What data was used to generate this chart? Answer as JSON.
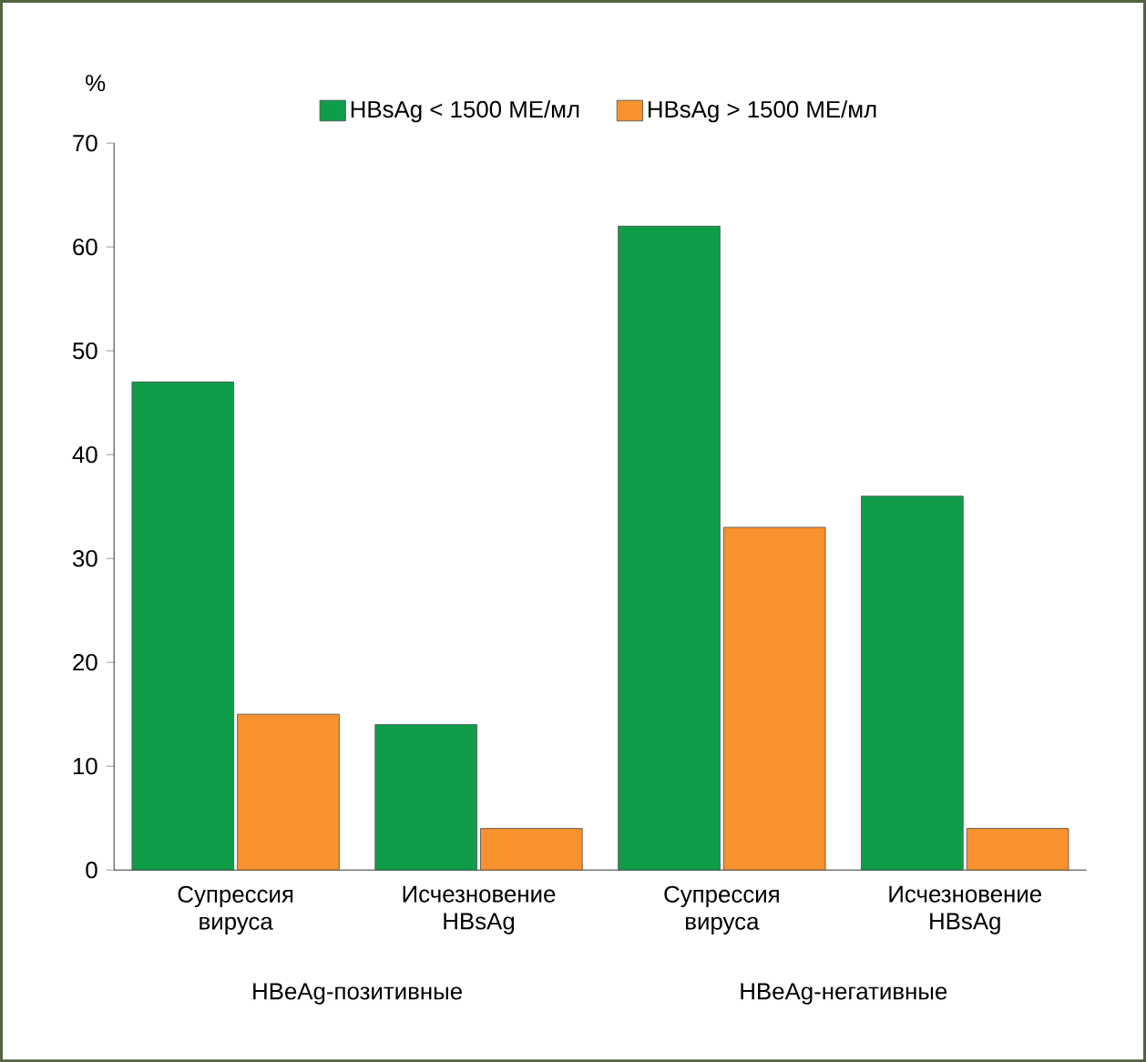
{
  "chart_data": {
    "type": "bar",
    "ylabel": "%",
    "categories": [
      "Супрессия вируса",
      "Исчезновение HBsAg",
      "Супрессия вируса",
      "Исчезновение HBsAg"
    ],
    "series": [
      {
        "name": "HBsAg < 1500 МЕ/мл",
        "color": "#0f9d4a",
        "values": [
          47,
          14,
          62,
          36
        ]
      },
      {
        "name": "HBsAg > 1500 МЕ/мл",
        "color": "#f7922e",
        "values": [
          15,
          4,
          33,
          4
        ]
      }
    ],
    "ylim": [
      0,
      70
    ],
    "yticks": [
      0,
      10,
      20,
      30,
      40,
      50,
      60,
      70
    ],
    "annotations": [
      "HBeAg-позитивные",
      "HBeAg-негативные"
    ],
    "legend": "top",
    "grid": false
  }
}
